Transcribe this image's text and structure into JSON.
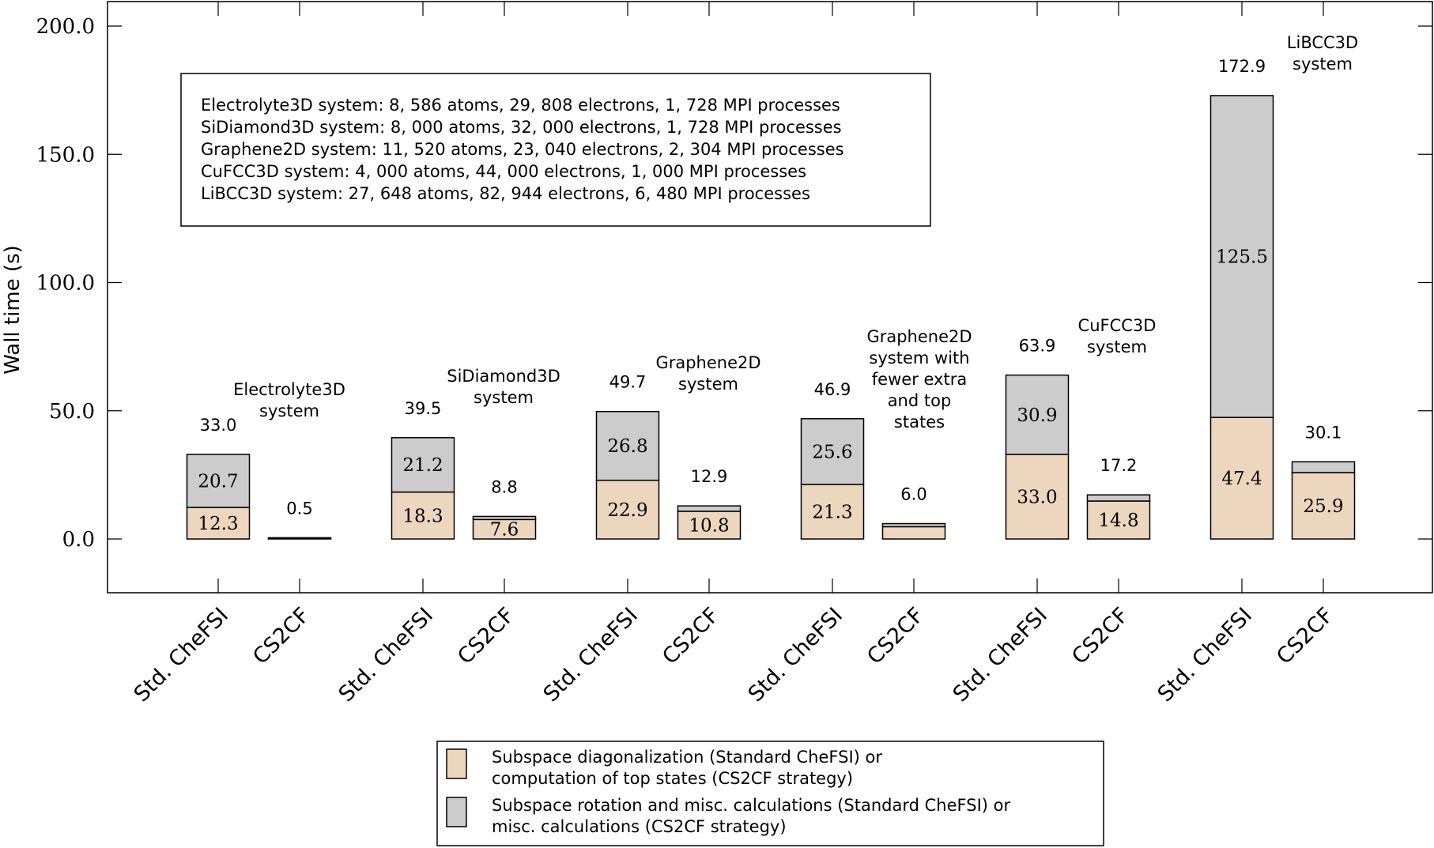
{
  "chart_data": {
    "type": "bar",
    "stacked": true,
    "ylabel": "Wall time (s)",
    "ylim": [
      -20,
      200
    ],
    "yticks": [
      "0.0",
      "50.0",
      "100.0",
      "150.0",
      "200.0"
    ],
    "ytick_values": [
      0,
      50,
      100,
      150,
      200
    ],
    "grid": false,
    "info_box": [
      "Electrolyte3D system: 8, 586 atoms, 29, 808 electrons, 1, 728 MPI processes",
      "SiDiamond3D system: 8, 000 atoms, 32, 000 electrons, 1, 728 MPI processes",
      "Graphene2D system: 11, 520 atoms, 23, 040 electrons, 2, 304 MPI processes",
      "CuFCC3D system: 4, 000 atoms, 44, 000 electrons, 1, 000 MPI processes",
      "LiBCC3D system: 27, 648 atoms, 82, 944 electrons, 6, 480 MPI processes"
    ],
    "series": [
      {
        "name": "Subspace diagonalization (Standard CheFSI) or computation of top states (CS2CF strategy)",
        "color": "#ecd6bd"
      },
      {
        "name": "Subspace rotation and misc. calculations (Standard CheFSI) or misc. calculations (CS2CF strategy)",
        "color": "#cccccc"
      }
    ],
    "legend_lines": [
      [
        "Subspace diagonalization (Standard CheFSI) or",
        "computation of top states (CS2CF strategy)"
      ],
      [
        "Subspace rotation and misc. calculations (Standard CheFSI) or",
        "misc. calculations (CS2CF strategy)"
      ]
    ],
    "legend_position": "bottom-center",
    "groups": [
      {
        "label": [
          "Electrolyte3D",
          "system"
        ],
        "bars": [
          {
            "category": "Std. CheFSI",
            "values": [
              12.3,
              20.7
            ],
            "value_labels": [
              "12.3",
              "20.7"
            ],
            "total": "33.0"
          },
          {
            "category": "CS2CF",
            "values": [
              0.2,
              0.3
            ],
            "value_labels": [
              "",
              ""
            ],
            "total": "0.5"
          }
        ]
      },
      {
        "label": [
          "SiDiamond3D",
          "system"
        ],
        "bars": [
          {
            "category": "Std. CheFSI",
            "values": [
              18.3,
              21.2
            ],
            "value_labels": [
              "18.3",
              "21.2"
            ],
            "total": "39.5"
          },
          {
            "category": "CS2CF",
            "values": [
              7.6,
              1.2
            ],
            "value_labels": [
              "7.6",
              ""
            ],
            "total": "8.8"
          }
        ]
      },
      {
        "label": [
          "Graphene2D",
          "system"
        ],
        "bars": [
          {
            "category": "Std. CheFSI",
            "values": [
              22.9,
              26.8
            ],
            "value_labels": [
              "22.9",
              "26.8"
            ],
            "total": "49.7"
          },
          {
            "category": "CS2CF",
            "values": [
              10.8,
              2.1
            ],
            "value_labels": [
              "10.8",
              ""
            ],
            "total": "12.9"
          }
        ]
      },
      {
        "label": [
          "Graphene2D",
          "system with",
          "fewer extra",
          "and top",
          "states"
        ],
        "bars": [
          {
            "category": "Std. CheFSI",
            "values": [
              21.3,
              25.6
            ],
            "value_labels": [
              "21.3",
              "25.6"
            ],
            "total": "46.9"
          },
          {
            "category": "CS2CF",
            "values": [
              4.8,
              1.2
            ],
            "value_labels": [
              "",
              ""
            ],
            "total": "6.0"
          }
        ]
      },
      {
        "label": [
          "CuFCC3D",
          "system"
        ],
        "bars": [
          {
            "category": "Std. CheFSI",
            "values": [
              33.0,
              30.9
            ],
            "value_labels": [
              "33.0",
              "30.9"
            ],
            "total": "63.9"
          },
          {
            "category": "CS2CF",
            "values": [
              14.8,
              2.4
            ],
            "value_labels": [
              "14.8",
              ""
            ],
            "total": "17.2"
          }
        ]
      },
      {
        "label": [
          "LiBCC3D",
          "system"
        ],
        "bars": [
          {
            "category": "Std. CheFSI",
            "values": [
              47.4,
              125.5
            ],
            "value_labels": [
              "47.4",
              "125.5"
            ],
            "total": "172.9"
          },
          {
            "category": "CS2CF",
            "values": [
              25.9,
              4.2
            ],
            "value_labels": [
              "25.9",
              ""
            ],
            "total": "30.1"
          }
        ]
      }
    ]
  }
}
